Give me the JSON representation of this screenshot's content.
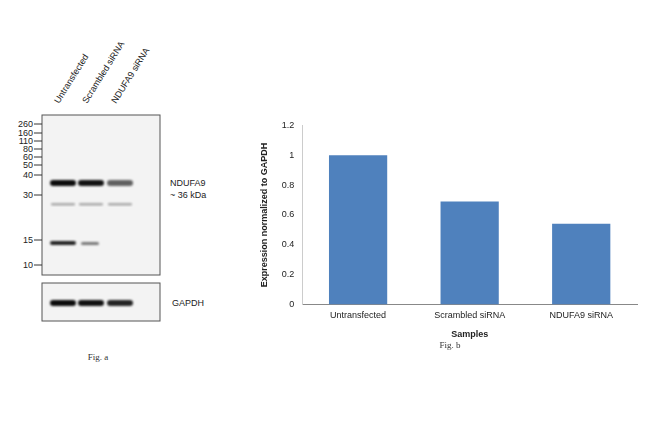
{
  "blot": {
    "lanes": [
      "Untransfected",
      "Scrambled siRNA",
      "NDUFA9 siRNA"
    ],
    "markers": [
      260,
      160,
      110,
      80,
      60,
      50,
      40,
      30,
      15,
      10
    ],
    "band_label": [
      "NDUFA9",
      "~ 36 kDa"
    ],
    "loading_control": "GAPDH",
    "caption": "Fig. a"
  },
  "chart_data": {
    "type": "bar",
    "categories": [
      "Untransfected",
      "Scrambled siRNA",
      "NDUFA9 siRNA"
    ],
    "values": [
      1,
      0.69,
      0.54
    ],
    "color": "#4f81bd",
    "ylim": [
      0,
      1.2
    ],
    "yticks": [
      0,
      0.2,
      0.4,
      0.6,
      0.8,
      1,
      1.2
    ],
    "x_label": "Samples",
    "y_label": "Expression normalized to GAPDH",
    "grid": false,
    "caption": "Fig. b"
  }
}
